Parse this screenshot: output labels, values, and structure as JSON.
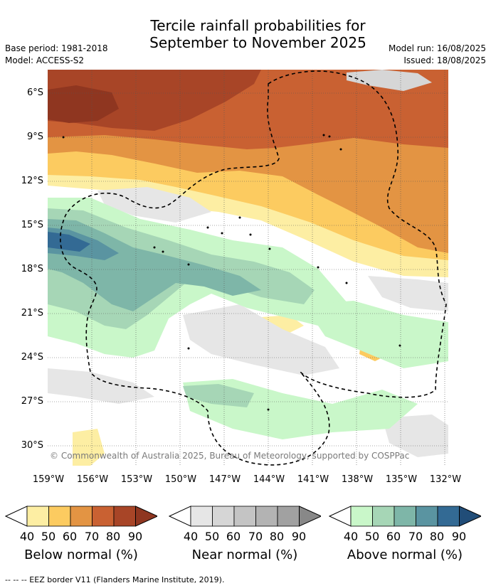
{
  "title_line1": "Tercile rainfall probabilities for",
  "title_line2": "September to November 2025",
  "base_period": "Base period: 1981-2018",
  "model": "Model: ACCESS-S2",
  "model_run": "Model run: 16/08/2025",
  "issued": "Issued: 18/08/2025",
  "credit": "© Commonwealth of Australia 2025, Bureau of Meteorology, supported by COSPPac",
  "lat_labels": [
    "6°S",
    "9°S",
    "12°S",
    "15°S",
    "18°S",
    "21°S",
    "24°S",
    "27°S",
    "30°S"
  ],
  "lon_labels": [
    "159°W",
    "156°W",
    "153°W",
    "150°W",
    "147°W",
    "144°W",
    "141°W",
    "138°W",
    "135°W",
    "132°W"
  ],
  "legend": {
    "below": {
      "label": "Below normal (%)",
      "ticks": [
        "40",
        "50",
        "60",
        "70",
        "80",
        "90"
      ],
      "colors": [
        "#fdeea3",
        "#fccb60",
        "#e39443",
        "#c96132",
        "#a84527",
        "#8f3620"
      ]
    },
    "near": {
      "label": "Near normal (%)",
      "ticks": [
        "40",
        "50",
        "60",
        "70",
        "80",
        "90"
      ],
      "colors": [
        "#e6e6e6",
        "#d6d6d6",
        "#c4c4c4",
        "#b3b3b3",
        "#a1a1a1",
        "#888888"
      ]
    },
    "above": {
      "label": "Above normal (%)",
      "ticks": [
        "40",
        "50",
        "60",
        "70",
        "80",
        "90"
      ],
      "colors": [
        "#c9f7c9",
        "#a6d6b6",
        "#7eb6a8",
        "#5a94a1",
        "#336a94",
        "#214d78"
      ]
    }
  },
  "footnote": "--  --  -- EEZ border V11 (Flanders Marine Institute, 2019)."
}
